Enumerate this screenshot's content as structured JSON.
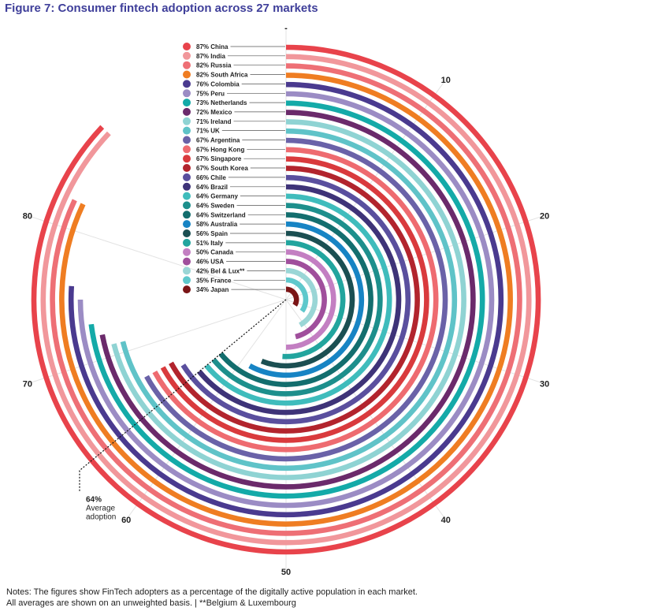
{
  "title": "Figure 7: Consumer fintech adoption across 27 markets",
  "notes": {
    "line1": "Notes: The figures show FinTech adopters as a percentage of the digitally active population in each market.",
    "line2": "All averages are shown on an unweighted basis.  |  **Belgium & Luxembourg"
  },
  "chart_data": {
    "type": "radial-bar",
    "scale_max": 100,
    "ticks": [
      {
        "value": 0,
        "label": "-"
      },
      {
        "value": 10,
        "label": "10"
      },
      {
        "value": 20,
        "label": "20"
      },
      {
        "value": 30,
        "label": "30"
      },
      {
        "value": 40,
        "label": "40"
      },
      {
        "value": 50,
        "label": "50"
      },
      {
        "value": 60,
        "label": "60"
      },
      {
        "value": 70,
        "label": "70"
      },
      {
        "value": 80,
        "label": "80"
      }
    ],
    "average": {
      "value": 64,
      "label_value": "64%",
      "label_line1": "Average",
      "label_line2": "adoption"
    },
    "series": [
      {
        "label": "87% China",
        "value": 87,
        "color": "#e8434b"
      },
      {
        "label": "87% India",
        "value": 87,
        "color": "#f1979b"
      },
      {
        "label": "82% Russia",
        "value": 82,
        "color": "#ee6f75"
      },
      {
        "label": "82% South Africa",
        "value": 82,
        "color": "#ef7d22"
      },
      {
        "label": "76% Colombia",
        "value": 76,
        "color": "#4a3a8f"
      },
      {
        "label": "75% Peru",
        "value": 75,
        "color": "#9b8cc4"
      },
      {
        "label": "73% Netherlands",
        "value": 73,
        "color": "#14aaa8"
      },
      {
        "label": "72% Mexico",
        "value": 72,
        "color": "#6b2a6b"
      },
      {
        "label": "71% Ireland",
        "value": 71,
        "color": "#8fd3d3"
      },
      {
        "label": "71% UK",
        "value": 71,
        "color": "#5fc3c8"
      },
      {
        "label": "67% Argentina",
        "value": 67,
        "color": "#6a62a8"
      },
      {
        "label": "67% Hong Kong",
        "value": 67,
        "color": "#ee6b70"
      },
      {
        "label": "67% Singapore",
        "value": 67,
        "color": "#d93a3d"
      },
      {
        "label": "67% South Korea",
        "value": 67,
        "color": "#b2242d"
      },
      {
        "label": "66% Chile",
        "value": 66,
        "color": "#5a4f9e"
      },
      {
        "label": "64% Brazil",
        "value": 64,
        "color": "#3e3378"
      },
      {
        "label": "64% Germany",
        "value": 64,
        "color": "#3fbcbc"
      },
      {
        "label": "64% Sweden",
        "value": 64,
        "color": "#1d8f8c"
      },
      {
        "label": "64% Switzerland",
        "value": 64,
        "color": "#136e6e"
      },
      {
        "label": "58% Australia",
        "value": 58,
        "color": "#1784c4"
      },
      {
        "label": "56% Spain",
        "value": 56,
        "color": "#1b4f52"
      },
      {
        "label": "51% Italy",
        "value": 51,
        "color": "#22a59e"
      },
      {
        "label": "50% Canada",
        "value": 50,
        "color": "#c37fc2"
      },
      {
        "label": "46% USA",
        "value": 46,
        "color": "#a04f9c"
      },
      {
        "label": "42% Bel & Lux**",
        "value": 42,
        "color": "#9ad6d6"
      },
      {
        "label": "35% France",
        "value": 35,
        "color": "#5ec8cc"
      },
      {
        "label": "34% Japan",
        "value": 34,
        "color": "#7a1516"
      }
    ]
  }
}
